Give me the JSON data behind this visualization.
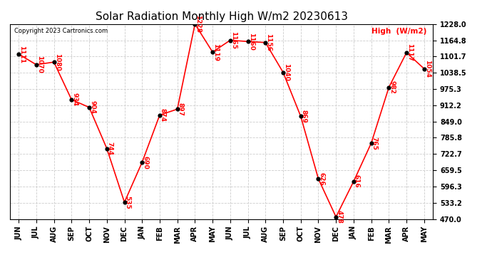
{
  "title": "Solar Radiation Monthly High W/m2 20230613",
  "copyright": "Copyright 2023 Cartronics.com",
  "legend_label": "High  (W/m2)",
  "months": [
    "JUN",
    "JUL",
    "AUG",
    "SEP",
    "OCT",
    "NOV",
    "DEC",
    "JAN",
    "FEB",
    "MAR",
    "APR",
    "MAY",
    "JUN",
    "JUL",
    "AUG",
    "SEP",
    "OCT",
    "NOV",
    "DEC",
    "JAN",
    "FEB",
    "MAR",
    "APR",
    "MAY"
  ],
  "values": [
    1111,
    1070,
    1080,
    934,
    904,
    744,
    535,
    690,
    874,
    897,
    1228,
    1119,
    1165,
    1160,
    1156,
    1040,
    869,
    626,
    478,
    616,
    765,
    982,
    1117,
    1054
  ],
  "ylim": [
    470.0,
    1228.0
  ],
  "yticks": [
    470.0,
    533.2,
    596.3,
    659.5,
    722.7,
    785.8,
    849.0,
    912.2,
    975.3,
    1038.5,
    1101.7,
    1164.8,
    1228.0
  ],
  "line_color": "red",
  "marker_color": "black",
  "label_color": "red",
  "title_fontsize": 11,
  "background_color": "#ffffff",
  "grid_color": "#cccccc"
}
